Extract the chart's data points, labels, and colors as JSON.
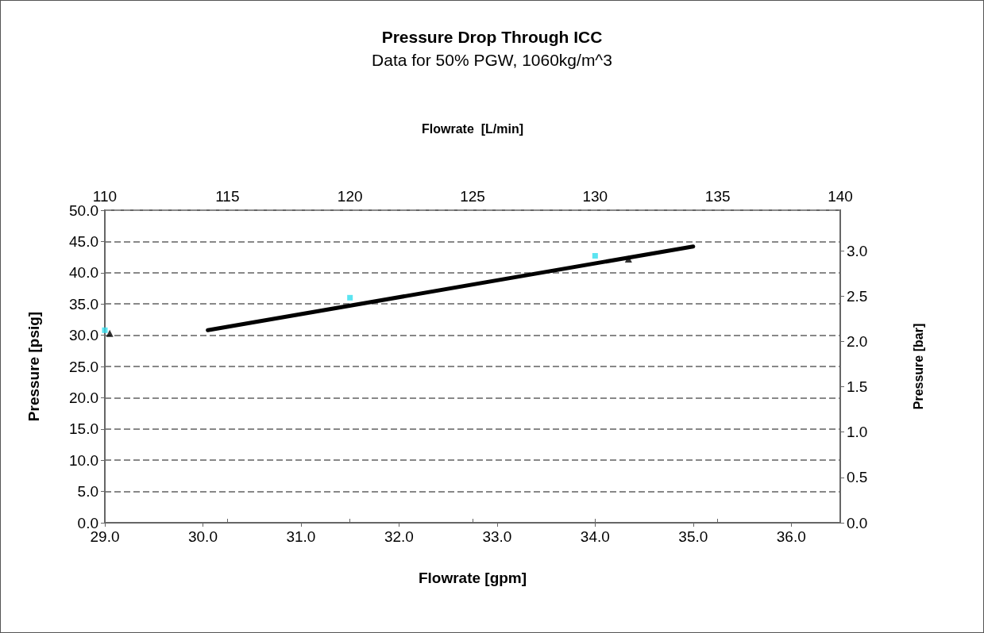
{
  "chart_data": {
    "type": "scatter",
    "title": "Pressure Drop Through ICC",
    "subtitle": "Data for 50% PGW, 1060kg/m^3",
    "xlabel": "Flowrate [gpm]",
    "x2label": "Flowrate  [L/min]",
    "ylabel": "Pressure [psig]",
    "y2label": "Pressure [bar]",
    "xlim": [
      29,
      36.5
    ],
    "xticks": [
      {
        "value": 29,
        "label": "29.0"
      },
      {
        "value": 30,
        "label": "30.0"
      },
      {
        "value": 31,
        "label": "31.0"
      },
      {
        "value": 32,
        "label": "32.0"
      },
      {
        "value": 33,
        "label": "33.0"
      },
      {
        "value": 34,
        "label": "34.0"
      },
      {
        "value": 35,
        "label": "35.0"
      },
      {
        "value": 36,
        "label": "36.0"
      }
    ],
    "x2lim": [
      110,
      140
    ],
    "x2ticks": [
      110,
      115,
      120,
      125,
      130,
      135,
      140
    ],
    "ylim": [
      0,
      50
    ],
    "yticks": [
      {
        "value": 0,
        "label": "0.0"
      },
      {
        "value": 5,
        "label": "5.0"
      },
      {
        "value": 10,
        "label": "10.0"
      },
      {
        "value": 15,
        "label": "15.0"
      },
      {
        "value": 20,
        "label": "20.0"
      },
      {
        "value": 25,
        "label": "25.0"
      },
      {
        "value": 30,
        "label": "30.0"
      },
      {
        "value": 35,
        "label": "35.0"
      },
      {
        "value": 40,
        "label": "40.0"
      },
      {
        "value": 45,
        "label": "45.0"
      },
      {
        "value": 50,
        "label": "50.0"
      }
    ],
    "y2lim": [
      0,
      3.447
    ],
    "y2ticks": [
      {
        "value": 0,
        "label": "0.0"
      },
      {
        "value": 0.5,
        "label": "0.5"
      },
      {
        "value": 1,
        "label": "1.0"
      },
      {
        "value": 1.5,
        "label": "1.5"
      },
      {
        "value": 2,
        "label": "2.0"
      },
      {
        "value": 2.5,
        "label": "2.5"
      },
      {
        "value": 3,
        "label": "3.0"
      }
    ],
    "grid": "y",
    "marker": "square",
    "series": [
      {
        "color": "#33ddee",
        "x": [
          29.0,
          31.5,
          34.0
        ],
        "values": [
          30.8,
          36.0,
          42.7
        ]
      },
      {
        "color": "#000000",
        "marker": "triangle",
        "x": [
          29.05,
          34.34
        ],
        "values": [
          30.3,
          42.2
        ]
      },
      {
        "type": "line",
        "color": "#000000",
        "marker": "none",
        "x": [
          30.05,
          35.0
        ],
        "values": [
          30.8,
          44.2
        ]
      }
    ]
  }
}
